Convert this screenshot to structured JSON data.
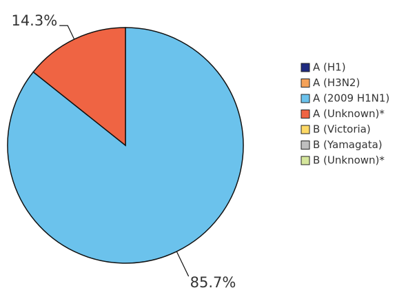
{
  "chart_data": {
    "type": "pie",
    "categories": [
      "A (H1)",
      "A (H3N2)",
      "A (2009 H1N1)",
      "A (Unknown)*",
      "B (Victoria)",
      "B (Yamagata)",
      "B (Unknown)*"
    ],
    "values": [
      0,
      0,
      85.7,
      14.3,
      0,
      0,
      0
    ],
    "value_labels": [
      null,
      null,
      "85.7%",
      "14.3%",
      null,
      null,
      null
    ],
    "colors": [
      "#1f2a80",
      "#f4a259",
      "#6bc2ec",
      "#ef6443",
      "#fdd966",
      "#bfbfbf",
      "#d5e69c"
    ],
    "legend": "right"
  }
}
